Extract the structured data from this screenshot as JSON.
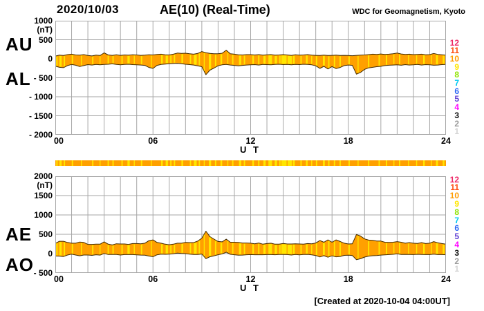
{
  "header": {
    "date": "2020/10/03",
    "title": "AE(10) (Real-Time)",
    "org": "WDC for Geomagnetism, Kyoto"
  },
  "footer": {
    "created": "[Created at 2020-10-04 04:00UT]"
  },
  "axis": {
    "xlabel": "U T",
    "xtick_labels": [
      "00",
      "06",
      "12",
      "18",
      "24"
    ],
    "xtick_hours": [
      0,
      6,
      12,
      18,
      24
    ]
  },
  "station_count_scale": {
    "values": [
      "12",
      "11",
      "10",
      "9",
      "8",
      "7",
      "6",
      "5",
      "4",
      "3",
      "2",
      "1"
    ],
    "colors": {
      "12": "#ee2866",
      "11": "#ff4e11",
      "10": "#ff9c00",
      "9": "#ffe600",
      "8": "#8fe300",
      "7": "#00c8f0",
      "6": "#2d68f5",
      "5": "#5f3fd3",
      "4": "#ff00ff",
      "3": "#111111",
      "2": "#9a9a9a",
      "1": "#d4d4d4"
    }
  },
  "colors": {
    "band_fill": "#ffa000",
    "band_stroke": "#3f2a00",
    "streak_yellow": "#ffe600",
    "grid": "#a6a6a6",
    "text": "#000000",
    "background": "#ffffff"
  },
  "chart_data": [
    {
      "type": "area",
      "name": "AU-AL band (upper panel)",
      "unit": "(nT)",
      "xlim": [
        0,
        24
      ],
      "x_step_hours": 0.25,
      "ylim": [
        -2000,
        1000
      ],
      "ytick_values": [
        1000,
        500,
        0,
        -500,
        -1000,
        -1500,
        -2000
      ],
      "ytick_labels": [
        "1000",
        "500",
        "0",
        "- 500",
        "- 1000",
        "- 1500",
        "- 2000"
      ],
      "left_labels": [
        "AU",
        "AL"
      ],
      "series": [
        {
          "name": "AU",
          "values": [
            70,
            95,
            85,
            110,
            120,
            100,
            95,
            110,
            85,
            75,
            95,
            85,
            155,
            100,
            90,
            105,
            90,
            100,
            95,
            105,
            100,
            90,
            95,
            105,
            100,
            115,
            120,
            105,
            100,
            120,
            150,
            140,
            145,
            130,
            120,
            140,
            190,
            160,
            140,
            130,
            130,
            145,
            225,
            130,
            120,
            105,
            100,
            110,
            110,
            100,
            110,
            95,
            105,
            110,
            95,
            100,
            110,
            100,
            90,
            105,
            95,
            100,
            110,
            95,
            90,
            85,
            95,
            85,
            90,
            95,
            85,
            90,
            85,
            80,
            90,
            95,
            100,
            110,
            120,
            115,
            125,
            115,
            120,
            130,
            150,
            125,
            115,
            120,
            110,
            115,
            120,
            105,
            110,
            140,
            115,
            105,
            95
          ]
        },
        {
          "name": "AL",
          "values": [
            -195,
            -225,
            -235,
            -180,
            -150,
            -170,
            -205,
            -180,
            -155,
            -165,
            -150,
            -160,
            -150,
            -145,
            -135,
            -150,
            -160,
            -150,
            -145,
            -155,
            -160,
            -165,
            -175,
            -230,
            -255,
            -175,
            -150,
            -140,
            -130,
            -125,
            -120,
            -130,
            -145,
            -155,
            -165,
            -185,
            -210,
            -420,
            -300,
            -245,
            -185,
            -160,
            -150,
            -165,
            -175,
            -185,
            -175,
            -165,
            -160,
            -155,
            -165,
            -150,
            -155,
            -160,
            -150,
            -145,
            -155,
            -150,
            -160,
            -150,
            -155,
            -145,
            -150,
            -160,
            -185,
            -255,
            -200,
            -270,
            -205,
            -260,
            -230,
            -180,
            -165,
            -175,
            -405,
            -360,
            -280,
            -240,
            -225,
            -210,
            -200,
            -180,
            -170,
            -165,
            -160,
            -170,
            -155,
            -165,
            -160,
            -150,
            -165,
            -155,
            -160,
            -170,
            -165,
            -155,
            -150
          ]
        }
      ]
    },
    {
      "type": "area",
      "name": "AE-AO band (lower panel)",
      "unit": "(nT)",
      "xlim": [
        0,
        24
      ],
      "x_step_hours": 0.25,
      "ylim": [
        -500,
        2000
      ],
      "ytick_values": [
        2000,
        1500,
        1000,
        500,
        0,
        -500
      ],
      "ytick_labels": [
        "2000",
        "1500",
        "1000",
        "500",
        "0",
        "- 500"
      ],
      "left_labels": [
        "AE",
        "AO"
      ],
      "series": [
        {
          "name": "AE",
          "values": [
            265,
            320,
            320,
            290,
            270,
            270,
            300,
            290,
            240,
            240,
            245,
            245,
            305,
            245,
            225,
            255,
            250,
            250,
            240,
            260,
            260,
            255,
            270,
            335,
            355,
            290,
            270,
            245,
            230,
            245,
            270,
            270,
            290,
            285,
            285,
            325,
            400,
            580,
            440,
            375,
            315,
            305,
            375,
            295,
            295,
            290,
            275,
            275,
            270,
            255,
            275,
            245,
            260,
            270,
            245,
            245,
            265,
            250,
            250,
            255,
            250,
            245,
            260,
            255,
            275,
            340,
            295,
            355,
            295,
            355,
            315,
            270,
            250,
            255,
            495,
            455,
            380,
            350,
            345,
            325,
            325,
            295,
            290,
            295,
            310,
            295,
            270,
            285,
            270,
            265,
            285,
            260,
            270,
            310,
            280,
            260,
            245
          ]
        },
        {
          "name": "AO",
          "values": [
            -63,
            -65,
            -75,
            -35,
            -15,
            -35,
            -55,
            -35,
            -35,
            -45,
            -28,
            -38,
            3,
            -23,
            -23,
            -23,
            -35,
            -25,
            -25,
            -25,
            -30,
            -38,
            -40,
            -63,
            -78,
            -30,
            -15,
            -18,
            -15,
            -3,
            15,
            5,
            0,
            -13,
            -23,
            -23,
            -10,
            -130,
            -80,
            -58,
            -28,
            -8,
            38,
            -18,
            -28,
            -40,
            -38,
            -28,
            -25,
            -28,
            -28,
            -28,
            -25,
            -25,
            -28,
            -23,
            -23,
            -25,
            -35,
            -23,
            -30,
            -23,
            -20,
            -33,
            -48,
            -85,
            -53,
            -93,
            -58,
            -83,
            -73,
            -45,
            -40,
            -48,
            -158,
            -133,
            -90,
            -65,
            -53,
            -48,
            -38,
            -33,
            -25,
            -18,
            -5,
            -23,
            -20,
            -23,
            -25,
            -18,
            -23,
            -25,
            -25,
            -15,
            -25,
            -25,
            -28
          ]
        }
      ]
    },
    {
      "type": "heatmap",
      "name": "station-count-bar",
      "base_count": 10,
      "streak_count": 9,
      "streak_marks_hours": [
        [
          0.1,
          0.08
        ],
        [
          0.32,
          0.14
        ],
        [
          0.56,
          0.08
        ],
        [
          1.05,
          0.08
        ],
        [
          1.6,
          0.06
        ],
        [
          2.3,
          0.08
        ],
        [
          2.75,
          0.06
        ],
        [
          3.25,
          0.08
        ],
        [
          3.55,
          0.08
        ],
        [
          4.1,
          0.08
        ],
        [
          4.5,
          0.14
        ],
        [
          4.85,
          0.06
        ],
        [
          5.3,
          0.08
        ],
        [
          5.9,
          0.06
        ],
        [
          6.55,
          0.1
        ],
        [
          6.85,
          0.14
        ],
        [
          7.1,
          0.08
        ],
        [
          7.32,
          0.08
        ],
        [
          7.8,
          0.1
        ],
        [
          8.3,
          0.08
        ],
        [
          8.6,
          0.18
        ],
        [
          8.85,
          0.08
        ],
        [
          9.15,
          0.06
        ],
        [
          9.5,
          0.14
        ],
        [
          9.85,
          0.08
        ],
        [
          10.2,
          0.1
        ],
        [
          10.6,
          0.06
        ],
        [
          10.9,
          0.08
        ],
        [
          11.35,
          0.14
        ],
        [
          11.62,
          0.08
        ],
        [
          12.15,
          0.1
        ],
        [
          12.5,
          0.08
        ],
        [
          12.85,
          0.14
        ],
        [
          13.2,
          0.22
        ],
        [
          13.55,
          0.14
        ],
        [
          13.8,
          0.08
        ],
        [
          14.05,
          0.32
        ],
        [
          14.4,
          0.26
        ],
        [
          14.65,
          0.12
        ],
        [
          15.1,
          0.08
        ],
        [
          15.45,
          0.1
        ],
        [
          15.75,
          0.06
        ],
        [
          16.05,
          0.08
        ],
        [
          16.5,
          0.12
        ],
        [
          16.8,
          0.08
        ],
        [
          17.15,
          0.08
        ],
        [
          17.5,
          0.08
        ],
        [
          18.05,
          0.08
        ],
        [
          18.6,
          0.06
        ],
        [
          19.25,
          0.08
        ],
        [
          19.9,
          0.08
        ],
        [
          20.35,
          0.08
        ],
        [
          20.8,
          0.06
        ],
        [
          21.15,
          0.08
        ],
        [
          21.7,
          0.06
        ],
        [
          22.2,
          0.06
        ],
        [
          22.65,
          0.1
        ],
        [
          23.1,
          0.06
        ],
        [
          23.45,
          0.12
        ],
        [
          23.85,
          0.1
        ]
      ]
    }
  ]
}
